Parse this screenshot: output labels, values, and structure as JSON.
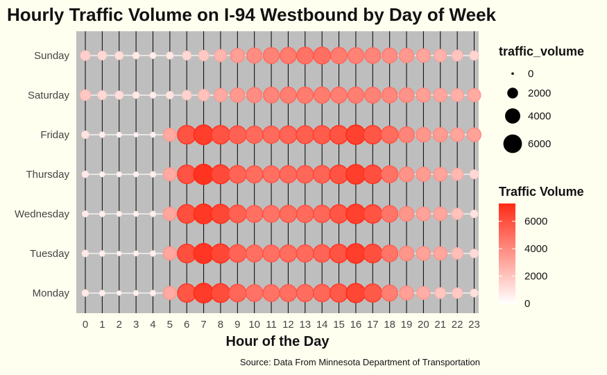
{
  "title": "Hourly Traffic Volume on I-94 Westbound by Day of Week",
  "xlabel": "Hour of the Day",
  "caption": "Source: Data From Minnesota Department of Transportation",
  "colors": {
    "background": "#fffff0",
    "panel": "#bebebe",
    "low": "#ffffff",
    "high": "#ff2a16"
  },
  "chart_data": {
    "type": "scatter",
    "encoding": "point size and fill color both map to traffic_volume",
    "x": [
      0,
      1,
      2,
      3,
      4,
      5,
      6,
      7,
      8,
      9,
      10,
      11,
      12,
      13,
      14,
      15,
      16,
      17,
      18,
      19,
      20,
      21,
      22,
      23
    ],
    "x_tick_labels": [
      "0",
      "1",
      "2",
      "3",
      "4",
      "5",
      "6",
      "7",
      "8",
      "9",
      "10",
      "11",
      "12",
      "13",
      "14",
      "15",
      "16",
      "17",
      "18",
      "19",
      "20",
      "21",
      "22",
      "23"
    ],
    "days": [
      "Sunday",
      "Saturday",
      "Friday",
      "Thursday",
      "Wednesday",
      "Tuesday",
      "Monday"
    ],
    "series": [
      {
        "name": "Sunday",
        "values": [
          1600,
          1300,
          1100,
          700,
          600,
          800,
          1300,
          1800,
          2500,
          3300,
          3900,
          4300,
          4500,
          4800,
          4900,
          4500,
          4300,
          4200,
          3900,
          3500,
          3100,
          2600,
          2000,
          1400
        ]
      },
      {
        "name": "Saturday",
        "values": [
          1900,
          1300,
          1100,
          700,
          600,
          900,
          1500,
          2100,
          2900,
          3500,
          3900,
          4200,
          4400,
          4500,
          4500,
          4400,
          4400,
          4300,
          4100,
          3700,
          3300,
          3000,
          2700,
          2900
        ]
      },
      {
        "name": "Friday",
        "values": [
          900,
          500,
          400,
          300,
          400,
          2900,
          5900,
          6600,
          5900,
          5400,
          5100,
          5100,
          5300,
          5500,
          5600,
          5900,
          6500,
          5800,
          5000,
          4200,
          3600,
          3400,
          3100,
          3200
        ]
      },
      {
        "name": "Thursday",
        "values": [
          700,
          400,
          400,
          400,
          500,
          2900,
          5900,
          7000,
          6200,
          5300,
          5000,
          4900,
          5100,
          5200,
          5300,
          5900,
          6600,
          6000,
          4800,
          3700,
          3400,
          3100,
          2400,
          1300
        ]
      },
      {
        "name": "Wednesday",
        "values": [
          600,
          500,
          400,
          400,
          500,
          3000,
          6000,
          6800,
          6300,
          5400,
          4900,
          4800,
          5000,
          5100,
          5200,
          5800,
          6500,
          5900,
          4700,
          3600,
          3200,
          3000,
          2100,
          900
        ]
      },
      {
        "name": "Tuesday",
        "values": [
          700,
          500,
          300,
          400,
          500,
          3000,
          6000,
          6900,
          6300,
          5300,
          4900,
          4900,
          5000,
          5100,
          5300,
          5900,
          6600,
          6000,
          4700,
          3600,
          3200,
          3000,
          2200,
          1200
        ]
      },
      {
        "name": "Monday",
        "values": [
          700,
          500,
          300,
          400,
          500,
          2900,
          5800,
          6700,
          6100,
          5200,
          4800,
          4800,
          4900,
          5000,
          5200,
          5700,
          6300,
          5700,
          4400,
          3300,
          2800,
          2000,
          1800,
          1000
        ]
      }
    ],
    "size_legend": {
      "title": "traffic_volume",
      "breaks": [
        0,
        2000,
        4000,
        6000
      ]
    },
    "color_legend": {
      "title": "Traffic Volume",
      "breaks": [
        0,
        2000,
        4000,
        6000
      ],
      "range": [
        0,
        7300
      ]
    },
    "grid": "vertical lines at each hour, horizontal connecting lines per day"
  }
}
